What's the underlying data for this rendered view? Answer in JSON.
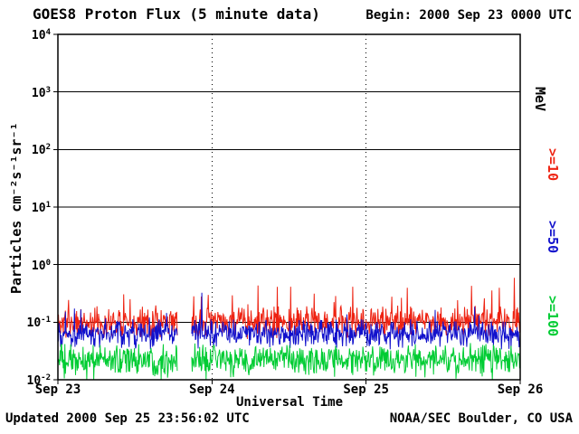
{
  "chart_data": {
    "type": "line",
    "title": "GOES8 Proton Flux (5 minute data)",
    "begin_label": "Begin: 2000 Sep 23 0000 UTC",
    "xlabel": "Universal Time",
    "ylabel": "Particles cm⁻²s⁻¹sr⁻¹",
    "x_ticks": [
      "Sep 23",
      "Sep 24",
      "Sep 25",
      "Sep 26"
    ],
    "y_tick_exponents": [
      4,
      3,
      2,
      1,
      0,
      -1,
      -2
    ],
    "ylim_log10": [
      -2,
      4
    ],
    "x_range_days": 3,
    "points_per_day": 288,
    "data_gap_days": [
      0.775,
      0.868
    ],
    "grid": {
      "h_line_exponents": [
        3,
        2,
        1,
        0,
        -1
      ],
      "v_dotted_days": [
        1,
        2
      ]
    },
    "right_axis_unit": "MeV",
    "right_labels": [
      {
        "text": "MeV",
        "color": "#000000"
      },
      {
        "text": ">=10",
        "color": "#ee2211"
      },
      {
        "text": ">=50",
        "color": "#1111cc"
      },
      {
        "text": ">=100",
        "color": "#00cc33"
      }
    ],
    "series": [
      {
        "name": ">=10 MeV",
        "color": "#ee2211",
        "log10_mean": -1.0,
        "log10_jitter": 0.3,
        "spike_prob": 0.06,
        "spike_amp": 0.6,
        "seed": 11
      },
      {
        "name": ">=50 MeV",
        "color": "#1111cc",
        "log10_mean": -1.2,
        "log10_jitter": 0.28,
        "spike_prob": 0.03,
        "spike_amp": 0.45,
        "seed": 77
      },
      {
        "name": ">=100 MeV",
        "color": "#00cc33",
        "log10_mean": -1.65,
        "log10_jitter": 0.3,
        "spike_prob": 0.06,
        "spike_amp": -0.45,
        "seed": 1234
      }
    ],
    "footer_left": "Updated 2000 Sep 25 23:56:02 UTC",
    "footer_right": "NOAA/SEC Boulder, CO USA"
  }
}
